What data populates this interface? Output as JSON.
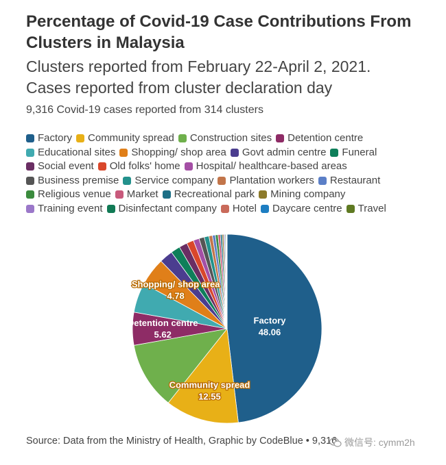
{
  "header": {
    "title": "Percentage of Covid-19 Case Contributions From Clusters in Malaysia",
    "subtitle_line1": "Clusters reported from February 22-April 2, 2021.",
    "subtitle_line2": "Cases reported from cluster declaration day",
    "cases_line": "9,316 Covid-19 cases reported from 314 clusters"
  },
  "footer": {
    "source": "Source: Data from the Ministry of Health, Graphic by CodeBlue",
    "source_suffix": "• 9,316",
    "watermark": "微信号: cymm2h"
  },
  "legend_rows": [
    [
      {
        "label": "Factory",
        "color": "#1f5f8b"
      },
      {
        "label": "Community spread",
        "color": "#e8b017"
      },
      {
        "label": "Construction sites",
        "color": "#6fb04c"
      },
      {
        "label": "Detention centre",
        "color": "#8e2c66"
      }
    ],
    [
      {
        "label": "Educational sites",
        "color": "#40aab0"
      },
      {
        "label": "Shopping/ shop area",
        "color": "#e07f19"
      },
      {
        "label": "Govt admin centre",
        "color": "#4b3d8f"
      },
      {
        "label": "Funeral",
        "color": "#0e7f5a"
      }
    ],
    [
      {
        "label": "Social event",
        "color": "#6a2e63"
      },
      {
        "label": "Old folks' home",
        "color": "#d9472b"
      },
      {
        "label": "Hospital/ healthcare-based areas",
        "color": "#a44fa5"
      }
    ],
    [
      {
        "label": "Business premise",
        "color": "#555555"
      },
      {
        "label": "Service company",
        "color": "#23918c"
      },
      {
        "label": "Plantation workers",
        "color": "#c2754a"
      },
      {
        "label": "Restaurant",
        "color": "#5b7fc7"
      }
    ],
    [
      {
        "label": "Religious venue",
        "color": "#3b8b3e"
      },
      {
        "label": "Market",
        "color": "#c85a7c"
      },
      {
        "label": "Recreational park",
        "color": "#1c6f86"
      },
      {
        "label": "Mining company",
        "color": "#8c7a2a"
      }
    ],
    [
      {
        "label": "Training event",
        "color": "#9b78c9"
      },
      {
        "label": "Disinfectant company",
        "color": "#117a55"
      },
      {
        "label": "Hotel",
        "color": "#c96a5a"
      },
      {
        "label": "Daycare centre",
        "color": "#1d7ec2"
      },
      {
        "label": "Travel",
        "color": "#5f7a22"
      }
    ]
  ],
  "chart_data": {
    "type": "pie",
    "title": "Percentage of Covid-19 Case Contributions From Clusters in Malaysia",
    "series": [
      {
        "name": "Factory",
        "value": 48.06,
        "color": "#1f5f8b",
        "labeled": true
      },
      {
        "name": "Community spread",
        "value": 12.55,
        "color": "#e8b017",
        "labeled": true
      },
      {
        "name": "Construction sites",
        "value": 11.5,
        "color": "#6fb04c",
        "labeled": false
      },
      {
        "name": "Detention centre",
        "value": 5.62,
        "color": "#8e2c66",
        "labeled": true
      },
      {
        "name": "Educational sites",
        "value": 5.1,
        "color": "#40aab0",
        "labeled": false
      },
      {
        "name": "Shopping/ shop area",
        "value": 4.78,
        "color": "#e07f19",
        "labeled": true
      },
      {
        "name": "Govt admin centre",
        "value": 2.3,
        "color": "#4b3d8f",
        "labeled": false
      },
      {
        "name": "Funeral",
        "value": 1.6,
        "color": "#0e7f5a",
        "labeled": false
      },
      {
        "name": "Social event",
        "value": 1.4,
        "color": "#6a2e63",
        "labeled": false
      },
      {
        "name": "Old folks' home",
        "value": 1.2,
        "color": "#d9472b",
        "labeled": false
      },
      {
        "name": "Hospital/ healthcare-based areas",
        "value": 1.0,
        "color": "#a44fa5",
        "labeled": false
      },
      {
        "name": "Business premise",
        "value": 0.9,
        "color": "#555555",
        "labeled": false
      },
      {
        "name": "Service company",
        "value": 0.8,
        "color": "#23918c",
        "labeled": false
      },
      {
        "name": "Plantation workers",
        "value": 0.6,
        "color": "#c2754a",
        "labeled": false
      },
      {
        "name": "Restaurant",
        "value": 0.5,
        "color": "#5b7fc7",
        "labeled": false
      },
      {
        "name": "Religious venue",
        "value": 0.45,
        "color": "#3b8b3e",
        "labeled": false
      },
      {
        "name": "Market",
        "value": 0.4,
        "color": "#c85a7c",
        "labeled": false
      },
      {
        "name": "Recreational park",
        "value": 0.3,
        "color": "#1c6f86",
        "labeled": false
      },
      {
        "name": "Mining company",
        "value": 0.25,
        "color": "#8c7a2a",
        "labeled": false
      },
      {
        "name": "Training event",
        "value": 0.2,
        "color": "#9b78c9",
        "labeled": false
      },
      {
        "name": "Disinfectant company",
        "value": 0.15,
        "color": "#117a55",
        "labeled": false
      },
      {
        "name": "Hotel",
        "value": 0.1,
        "color": "#c96a5a",
        "labeled": false
      },
      {
        "name": "Daycare centre",
        "value": 0.1,
        "color": "#1d7ec2",
        "labeled": false
      },
      {
        "name": "Travel",
        "value": 0.04,
        "color": "#5f7a22",
        "labeled": false
      }
    ],
    "legend": "top"
  }
}
